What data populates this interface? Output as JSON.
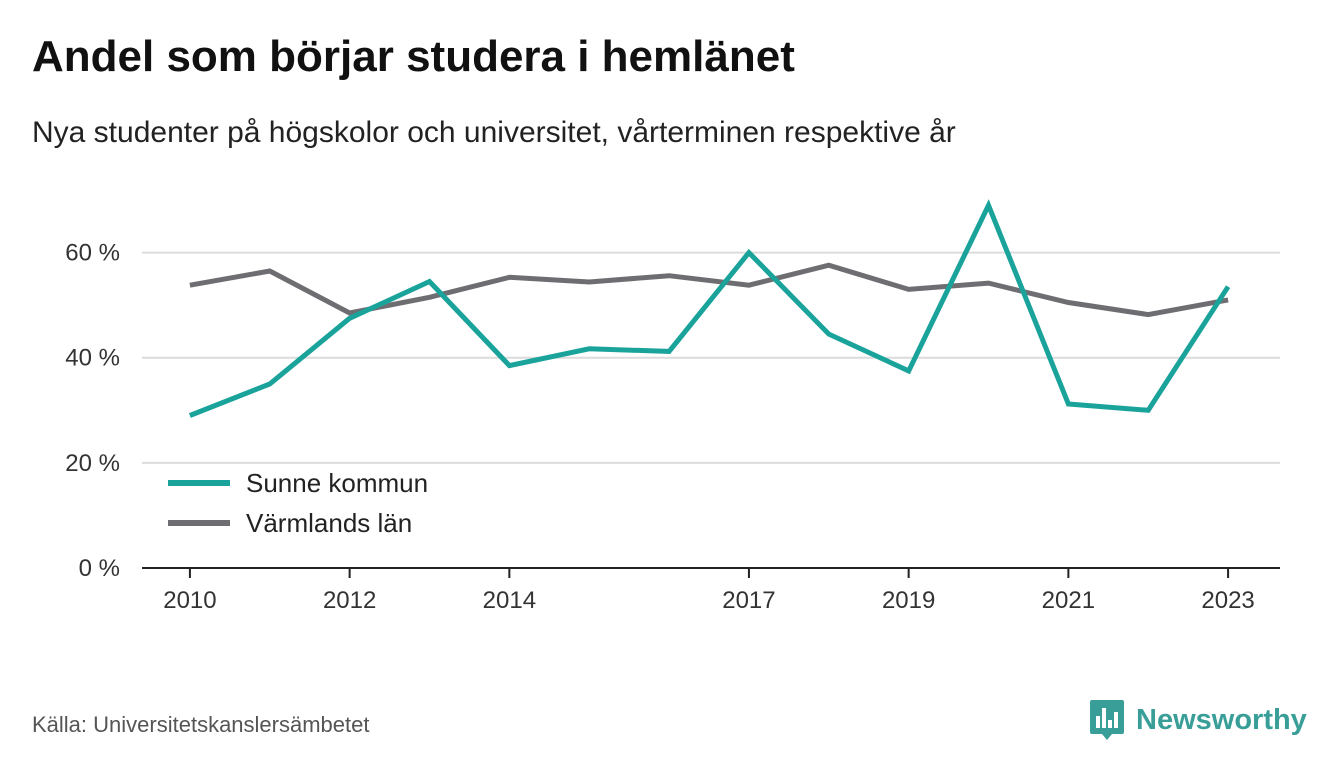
{
  "header": {
    "title": "Andel som börjar studera i hemlänet",
    "subtitle": "Nya studenter på högskolor och universitet, vårterminen respektive år"
  },
  "footer": {
    "source": "Källa: Universitetskanslersämbetet",
    "brand": "Newsworthy",
    "brand_icon": "bar-chart-badge-icon",
    "brand_color": "#3a9e98"
  },
  "chart_data": {
    "type": "line",
    "title": "Andel som börjar studera i hemlänet",
    "subtitle": "Nya studenter på högskolor och universitet, vårterminen respektive år",
    "xlabel": "",
    "ylabel": "",
    "x": [
      2010,
      2011,
      2012,
      2013,
      2014,
      2015,
      2016,
      2017,
      2018,
      2019,
      2020,
      2021,
      2022,
      2023
    ],
    "x_ticks": [
      2010,
      2012,
      2014,
      2017,
      2019,
      2021,
      2023
    ],
    "x_tick_labels": [
      "2010",
      "2012",
      "2014",
      "2017",
      "2019",
      "2021",
      "2023"
    ],
    "y_ticks": [
      0,
      20,
      40,
      60
    ],
    "y_tick_labels": [
      "0 %",
      "20 %",
      "40 %",
      "60 %"
    ],
    "ylim": [
      0,
      70
    ],
    "xlim": [
      2009.4,
      2023.65
    ],
    "grid": true,
    "legend_position": "bottom-left",
    "series": [
      {
        "name": "Sunne kommun",
        "color": "#1aa39a",
        "values": [
          29,
          35,
          47.5,
          54.5,
          38.5,
          41.7,
          41.2,
          60,
          44.5,
          37.5,
          69,
          31.2,
          30,
          53.5
        ]
      },
      {
        "name": "Värmlands län",
        "color": "#6e6d72",
        "values": [
          53.8,
          56.5,
          48.5,
          51.5,
          55.3,
          54.4,
          55.6,
          53.8,
          57.6,
          53,
          54.2,
          50.5,
          48.2,
          51
        ]
      }
    ]
  }
}
